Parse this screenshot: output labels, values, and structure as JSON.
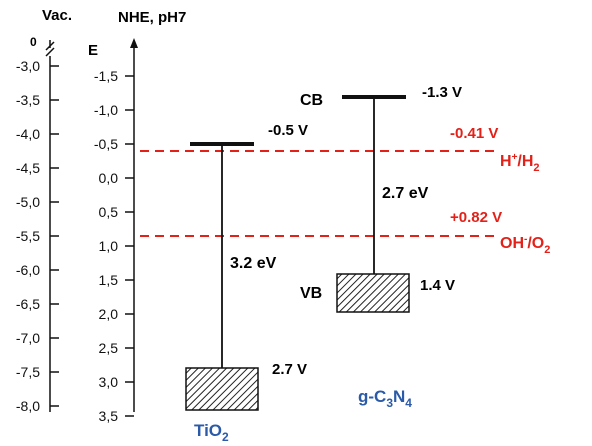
{
  "axes": {
    "vac_title": "Vac.",
    "vac_zero": "0",
    "vac_ticks": [
      "-3,0",
      "-3,5",
      "-4,0",
      "-4,5",
      "-5,0",
      "-5,5",
      "-6,0",
      "-6,5",
      "-7,0",
      "-7,5",
      "-8,0"
    ],
    "nhe_title": "NHE, pH7",
    "nhe_axis_letter": "E",
    "nhe_ticks": [
      "-1,5",
      "-1,0",
      "-0,5",
      "0,0",
      "0,5",
      "1,0",
      "1,5",
      "2,0",
      "2,5",
      "3,0",
      "3,5"
    ]
  },
  "reference_lines": {
    "h_value": "-0.41 V",
    "h_pair": {
      "a": "H",
      "sup": "+",
      "b": "/H",
      "sub": "2"
    },
    "o_value": "+0.82 V",
    "o_pair": {
      "a": "OH",
      "sup": "-",
      "b": "/O",
      "sub": "2"
    },
    "color": "#e32119"
  },
  "tio2": {
    "cb_value": "-0.5 V",
    "gap": "3.2 eV",
    "vb_value": "2.7 V",
    "name_main": "TiO",
    "name_sub": "2"
  },
  "gc3n4": {
    "cb_label": "CB",
    "cb_value": "-1.3 V",
    "gap": "2.7 eV",
    "vb_label": "VB",
    "vb_value": "1.4 V",
    "name": {
      "a": "g-C",
      "s1": "3",
      "b": "N",
      "s2": "4"
    }
  },
  "colors": {
    "red": "#e32119",
    "blue": "#2a5aa8",
    "black": "#111111"
  }
}
